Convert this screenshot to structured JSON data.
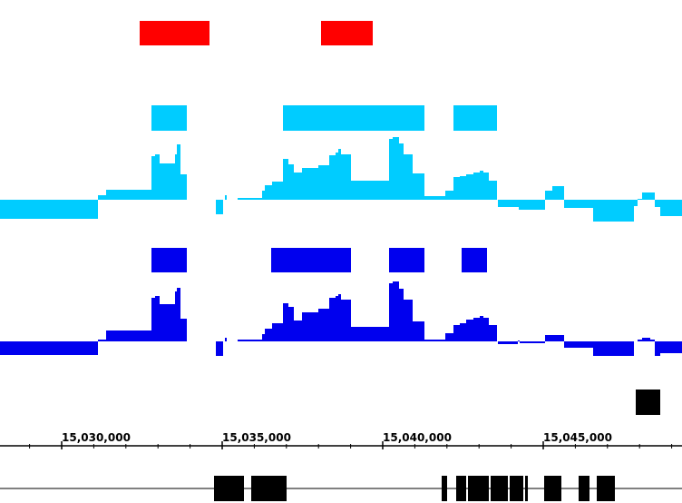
{
  "genome_browser": {
    "axis": {
      "tick_labels": [
        "15,030,000",
        "15,035,000",
        "15,040,000",
        "15,045,000"
      ]
    },
    "colors": {
      "red_track": "#ff0000",
      "cyan_track": "#00ccff",
      "blue_track": "#0000ee",
      "marker": "#000000",
      "gene": "#000000",
      "axis": "#000000"
    },
    "tracks": [
      {
        "id": "red-regions",
        "kind": "intervals",
        "color_key": "red_track"
      },
      {
        "id": "cyan-regions",
        "kind": "intervals",
        "color_key": "cyan_track"
      },
      {
        "id": "cyan-coverage",
        "kind": "signal",
        "color_key": "cyan_track"
      },
      {
        "id": "blue-regions",
        "kind": "intervals",
        "color_key": "blue_track"
      },
      {
        "id": "blue-coverage",
        "kind": "signal",
        "color_key": "blue_track"
      },
      {
        "id": "black-marker",
        "kind": "intervals",
        "color_key": "marker"
      },
      {
        "id": "gene-model",
        "kind": "gene",
        "color_key": "gene"
      }
    ]
  }
}
